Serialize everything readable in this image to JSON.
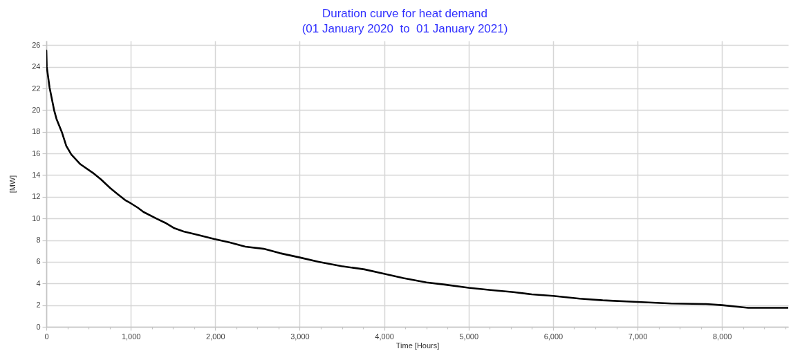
{
  "chart_data": {
    "type": "line",
    "title": "Duration curve for heat demand",
    "subtitle": "(01 January 2020  to  01 January 2021)",
    "xlabel": "Time [Hours]",
    "ylabel": "[MW]",
    "x": [
      0,
      5,
      38,
      92,
      120,
      187,
      236,
      296,
      404,
      553,
      648,
      757,
      852,
      933,
      1000,
      1082,
      1150,
      1300,
      1408,
      1516,
      1625,
      1787,
      1991,
      2167,
      2357,
      2574,
      2764,
      3000,
      3225,
      3496,
      3767,
      4000,
      4228,
      4500,
      4717,
      5000,
      5259,
      5530,
      5747,
      6000,
      6316,
      6587,
      7000,
      7400,
      7808,
      8000,
      8189,
      8310,
      8784
    ],
    "series": [
      {
        "color": "#000000",
        "values": [
          25.5,
          24.0,
          22.1,
          20.0,
          19.2,
          17.9,
          16.7,
          15.9,
          15.0,
          14.2,
          13.6,
          12.8,
          12.2,
          11.7,
          11.4,
          11.0,
          10.6,
          10.0,
          9.6,
          9.1,
          8.8,
          8.5,
          8.1,
          7.8,
          7.4,
          7.2,
          6.8,
          6.4,
          6.0,
          5.6,
          5.3,
          4.9,
          4.5,
          4.1,
          3.9,
          3.6,
          3.4,
          3.2,
          3.0,
          2.85,
          2.6,
          2.45,
          2.3,
          2.15,
          2.1,
          2.0,
          1.85,
          1.75,
          1.75
        ]
      }
    ],
    "xlim": [
      0,
      8784
    ],
    "xticks": [
      0,
      {
        "value": 250,
        "label": null
      },
      {
        "value": 500,
        "label": null
      },
      {
        "value": 750,
        "label": null
      },
      {
        "value": 1000,
        "label": "1,000"
      },
      {
        "value": 1250,
        "label": null
      },
      {
        "value": 1500,
        "label": null
      },
      {
        "value": 1750,
        "label": null
      },
      {
        "value": 2000,
        "label": "2,000"
      },
      {
        "value": 2250,
        "label": null
      },
      {
        "value": 2500,
        "label": null
      },
      {
        "value": 2750,
        "label": null
      },
      {
        "value": 3000,
        "label": "3,000"
      },
      {
        "value": 3250,
        "label": null
      },
      {
        "value": 3500,
        "label": null
      },
      {
        "value": 3750,
        "label": null
      },
      {
        "value": 4000,
        "label": "4,000"
      },
      {
        "value": 4250,
        "label": null
      },
      {
        "value": 4500,
        "label": null
      },
      {
        "value": 4750,
        "label": null
      },
      {
        "value": 5000,
        "label": "5,000"
      },
      {
        "value": 5250,
        "label": null
      },
      {
        "value": 5500,
        "label": null
      },
      {
        "value": 5750,
        "label": null
      },
      {
        "value": 6000,
        "label": "6,000"
      },
      {
        "value": 6250,
        "label": null
      },
      {
        "value": 6500,
        "label": null
      },
      {
        "value": 6750,
        "label": null
      },
      {
        "value": 7000,
        "label": "7,000"
      },
      {
        "value": 7250,
        "label": null
      },
      {
        "value": 7500,
        "label": null
      },
      {
        "value": 7750,
        "label": null
      },
      {
        "value": 8000,
        "label": "8,000"
      },
      {
        "value": 8250,
        "label": null
      },
      {
        "value": 8500,
        "label": null
      },
      {
        "value": 8750,
        "label": null
      }
    ],
    "ylim": [
      0,
      26.4
    ],
    "yticks": [
      0,
      2,
      4,
      6,
      8,
      10,
      12,
      14,
      16,
      18,
      20,
      22,
      24,
      26
    ],
    "grid": true
  }
}
